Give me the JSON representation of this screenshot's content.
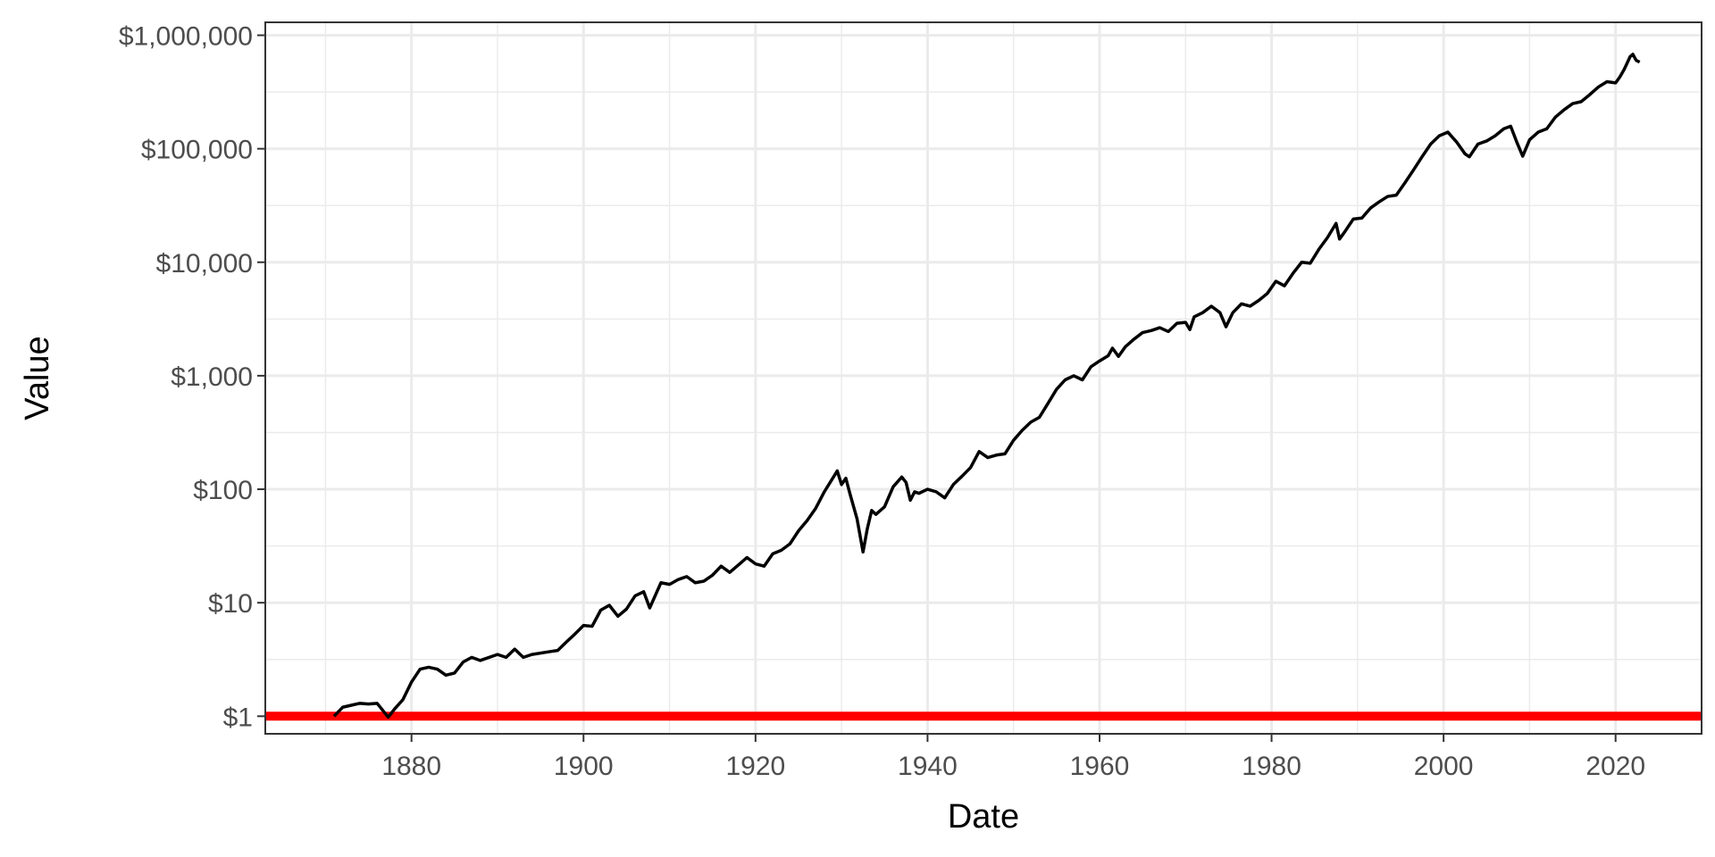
{
  "chart_data": {
    "type": "line",
    "title": "",
    "xlabel": "Date",
    "ylabel": "Value",
    "xlim": [
      1863,
      2030
    ],
    "ylim": [
      0.7,
      1300000
    ],
    "y_scale": "log10",
    "x_ticks": [
      1880,
      1900,
      1920,
      1940,
      1960,
      1980,
      2000,
      2020
    ],
    "y_ticks": [
      {
        "value": 1,
        "label": "$1"
      },
      {
        "value": 10,
        "label": "$10"
      },
      {
        "value": 100,
        "label": "$100"
      },
      {
        "value": 1000,
        "label": "$1,000"
      },
      {
        "value": 10000,
        "label": "$10,000"
      },
      {
        "value": 100000,
        "label": "$100,000"
      },
      {
        "value": 1000000,
        "label": "$1,000,000"
      }
    ],
    "grid": true,
    "legend": "none",
    "colors": {
      "series": "#000000",
      "reference": "#ff0000",
      "grid": "#ebebeb",
      "panel_border": "#333333"
    },
    "series": [
      {
        "points": [
          [
            1871.0,
            1.0
          ],
          [
            1872.0,
            1.2
          ],
          [
            1873.0,
            1.25
          ],
          [
            1874.0,
            1.3
          ],
          [
            1875.0,
            1.28
          ],
          [
            1876.0,
            1.3
          ],
          [
            1877.3,
            0.98
          ],
          [
            1878.0,
            1.15
          ],
          [
            1879.0,
            1.4
          ],
          [
            1880.0,
            2.0
          ],
          [
            1881.0,
            2.6
          ],
          [
            1882.0,
            2.7
          ],
          [
            1883.0,
            2.6
          ],
          [
            1884.0,
            2.3
          ],
          [
            1885.0,
            2.4
          ],
          [
            1886.0,
            3.0
          ],
          [
            1887.0,
            3.3
          ],
          [
            1888.0,
            3.1
          ],
          [
            1890.0,
            3.5
          ],
          [
            1891.0,
            3.3
          ],
          [
            1892.0,
            3.9
          ],
          [
            1893.0,
            3.3
          ],
          [
            1894.0,
            3.5
          ],
          [
            1896.0,
            3.7
          ],
          [
            1897.0,
            3.8
          ],
          [
            1898.0,
            4.5
          ],
          [
            1899.0,
            5.3
          ],
          [
            1900.0,
            6.3
          ],
          [
            1901.0,
            6.2
          ],
          [
            1902.0,
            8.6
          ],
          [
            1903.0,
            9.5
          ],
          [
            1904.0,
            7.6
          ],
          [
            1905.0,
            8.8
          ],
          [
            1906.0,
            11.5
          ],
          [
            1907.0,
            12.5
          ],
          [
            1907.7,
            9.0
          ],
          [
            1909.0,
            15.0
          ],
          [
            1910.0,
            14.5
          ],
          [
            1911.0,
            16.0
          ],
          [
            1912.0,
            17.0
          ],
          [
            1913.0,
            15.0
          ],
          [
            1914.0,
            15.5
          ],
          [
            1915.0,
            17.5
          ],
          [
            1916.0,
            21.0
          ],
          [
            1917.0,
            18.5
          ],
          [
            1918.0,
            21.5
          ],
          [
            1919.0,
            25.0
          ],
          [
            1920.0,
            22.0
          ],
          [
            1921.0,
            21.0
          ],
          [
            1922.0,
            27.0
          ],
          [
            1923.0,
            29.0
          ],
          [
            1924.0,
            33.0
          ],
          [
            1925.0,
            43.0
          ],
          [
            1926.0,
            53.0
          ],
          [
            1927.0,
            68.0
          ],
          [
            1928.0,
            95.0
          ],
          [
            1929.5,
            145.0
          ],
          [
            1930.0,
            110.0
          ],
          [
            1930.5,
            125.0
          ],
          [
            1931.0,
            90.0
          ],
          [
            1931.8,
            55.0
          ],
          [
            1932.5,
            28.0
          ],
          [
            1933.0,
            45.0
          ],
          [
            1933.5,
            65.0
          ],
          [
            1934.0,
            60.0
          ],
          [
            1935.0,
            70.0
          ],
          [
            1936.0,
            105.0
          ],
          [
            1937.0,
            128.0
          ],
          [
            1937.5,
            115.0
          ],
          [
            1938.0,
            80.0
          ],
          [
            1938.5,
            95.0
          ],
          [
            1939.0,
            92.0
          ],
          [
            1940.0,
            100.0
          ],
          [
            1941.0,
            95.0
          ],
          [
            1942.0,
            84.0
          ],
          [
            1943.0,
            110.0
          ],
          [
            1944.0,
            130.0
          ],
          [
            1945.0,
            155.0
          ],
          [
            1946.0,
            215.0
          ],
          [
            1947.0,
            190.0
          ],
          [
            1948.0,
            200.0
          ],
          [
            1949.0,
            205.0
          ],
          [
            1950.0,
            270.0
          ],
          [
            1951.0,
            330.0
          ],
          [
            1952.0,
            390.0
          ],
          [
            1953.0,
            430.0
          ],
          [
            1954.0,
            570.0
          ],
          [
            1955.0,
            760.0
          ],
          [
            1956.0,
            920.0
          ],
          [
            1957.0,
            1000.0
          ],
          [
            1958.0,
            920.0
          ],
          [
            1959.0,
            1200.0
          ],
          [
            1960.0,
            1350.0
          ],
          [
            1961.0,
            1500.0
          ],
          [
            1961.5,
            1750.0
          ],
          [
            1962.2,
            1480.0
          ],
          [
            1963.0,
            1800.0
          ],
          [
            1964.0,
            2100.0
          ],
          [
            1965.0,
            2400.0
          ],
          [
            1966.0,
            2500.0
          ],
          [
            1967.0,
            2650.0
          ],
          [
            1968.0,
            2450.0
          ],
          [
            1969.0,
            2900.0
          ],
          [
            1970.0,
            2950.0
          ],
          [
            1970.5,
            2550.0
          ],
          [
            1971.0,
            3300.0
          ],
          [
            1972.0,
            3600.0
          ],
          [
            1973.0,
            4100.0
          ],
          [
            1974.0,
            3600.0
          ],
          [
            1974.7,
            2700.0
          ],
          [
            1975.5,
            3600.0
          ],
          [
            1976.5,
            4300.0
          ],
          [
            1977.5,
            4100.0
          ],
          [
            1978.5,
            4600.0
          ],
          [
            1979.5,
            5300.0
          ],
          [
            1980.5,
            6800.0
          ],
          [
            1981.5,
            6200.0
          ],
          [
            1982.5,
            8000.0
          ],
          [
            1983.5,
            10000.0
          ],
          [
            1984.5,
            9800.0
          ],
          [
            1985.5,
            13000.0
          ],
          [
            1986.5,
            16500.0
          ],
          [
            1987.5,
            22000.0
          ],
          [
            1987.9,
            16000.0
          ],
          [
            1988.5,
            18500.0
          ],
          [
            1989.5,
            24000.0
          ],
          [
            1990.5,
            24500.0
          ],
          [
            1991.5,
            30000.0
          ],
          [
            1992.5,
            34000.0
          ],
          [
            1993.5,
            38000.0
          ],
          [
            1994.5,
            39000.0
          ],
          [
            1995.5,
            50000.0
          ],
          [
            1996.5,
            65000.0
          ],
          [
            1997.5,
            85000.0
          ],
          [
            1998.5,
            110000.0
          ],
          [
            1999.5,
            130000.0
          ],
          [
            2000.5,
            140000.0
          ],
          [
            2001.5,
            115000.0
          ],
          [
            2002.5,
            90000.0
          ],
          [
            2003.0,
            85000.0
          ],
          [
            2004.0,
            110000.0
          ],
          [
            2005.0,
            117000.0
          ],
          [
            2006.0,
            130000.0
          ],
          [
            2007.0,
            150000.0
          ],
          [
            2007.8,
            158000.0
          ],
          [
            2008.5,
            115000.0
          ],
          [
            2009.2,
            86000.0
          ],
          [
            2010.0,
            120000.0
          ],
          [
            2011.0,
            140000.0
          ],
          [
            2012.0,
            150000.0
          ],
          [
            2013.0,
            190000.0
          ],
          [
            2014.0,
            220000.0
          ],
          [
            2015.0,
            250000.0
          ],
          [
            2016.0,
            260000.0
          ],
          [
            2017.0,
            300000.0
          ],
          [
            2018.0,
            350000.0
          ],
          [
            2019.0,
            390000.0
          ],
          [
            2020.0,
            380000.0
          ],
          [
            2020.5,
            430000.0
          ],
          [
            2021.0,
            500000.0
          ],
          [
            2021.7,
            650000.0
          ],
          [
            2022.0,
            680000.0
          ],
          [
            2022.4,
            600000.0
          ],
          [
            2022.8,
            580000.0
          ]
        ]
      }
    ],
    "reference_line": {
      "value": 1
    }
  }
}
